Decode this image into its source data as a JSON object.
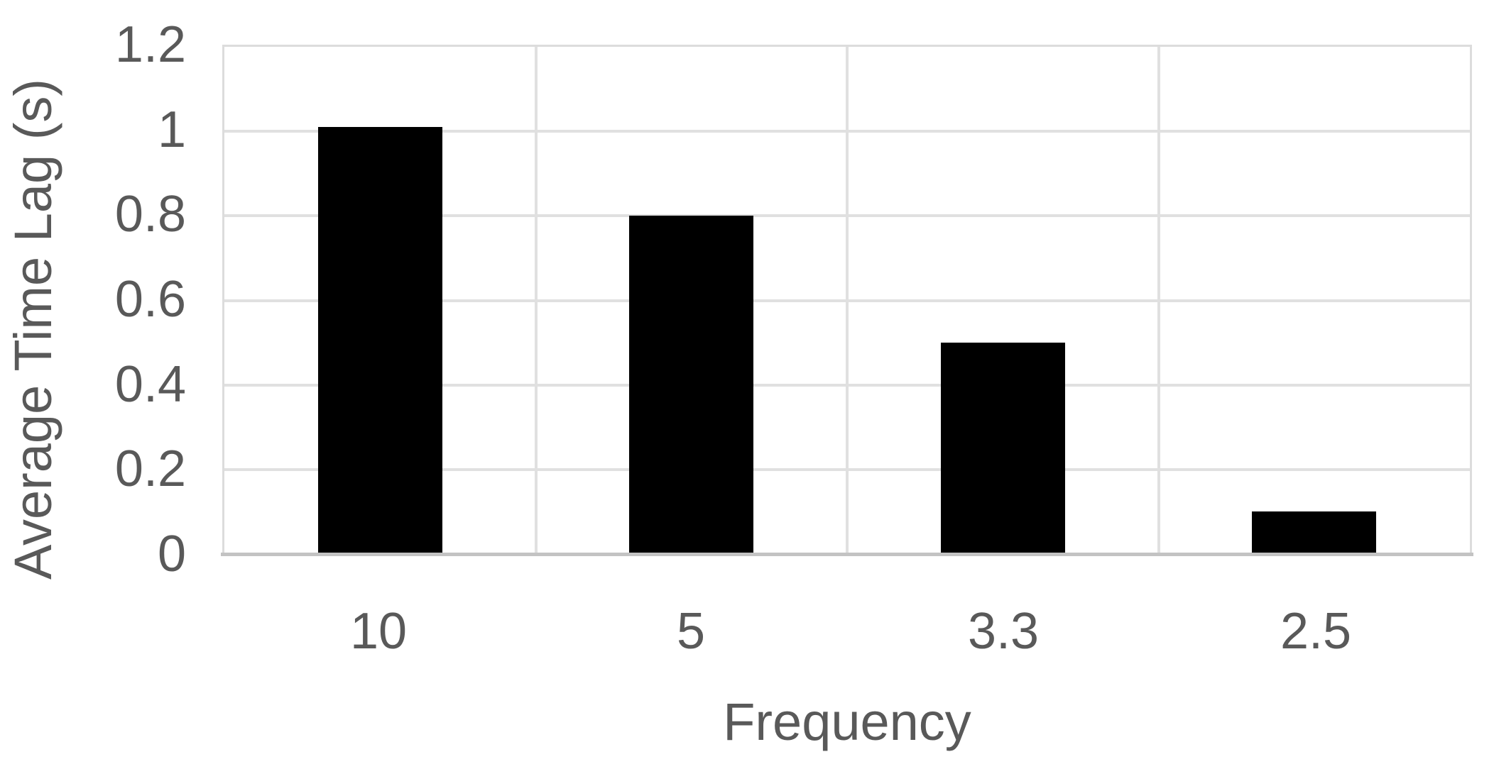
{
  "chart_data": {
    "type": "bar",
    "title": "",
    "xlabel": "Frequency",
    "ylabel": "Average Time Lag (s)",
    "categories": [
      "10",
      "5",
      "3.3",
      "2.5"
    ],
    "values": [
      1.01,
      0.8,
      0.5,
      0.1
    ],
    "series_name": "",
    "ylim": [
      0,
      1.2
    ],
    "yticks": [
      {
        "value": 0,
        "label": "0"
      },
      {
        "value": 0.2,
        "label": "0.2"
      },
      {
        "value": 0.4,
        "label": "0.4"
      },
      {
        "value": 0.6,
        "label": "0.6"
      },
      {
        "value": 0.8,
        "label": "0.8"
      },
      {
        "value": 1,
        "label": "1"
      },
      {
        "value": 1.2,
        "label": "1.2"
      }
    ],
    "grid": {
      "horizontal": true,
      "vertical_category_boundaries": true
    },
    "legend_position": "none",
    "colors": {
      "bar": "#000000",
      "gridline": "#e0e0e0",
      "plot_border": "#dcdcdc",
      "axis_line": "#c3c3c3",
      "text": "#595959",
      "background": "#ffffff"
    },
    "bar_width_fraction_of_category": 0.4
  }
}
